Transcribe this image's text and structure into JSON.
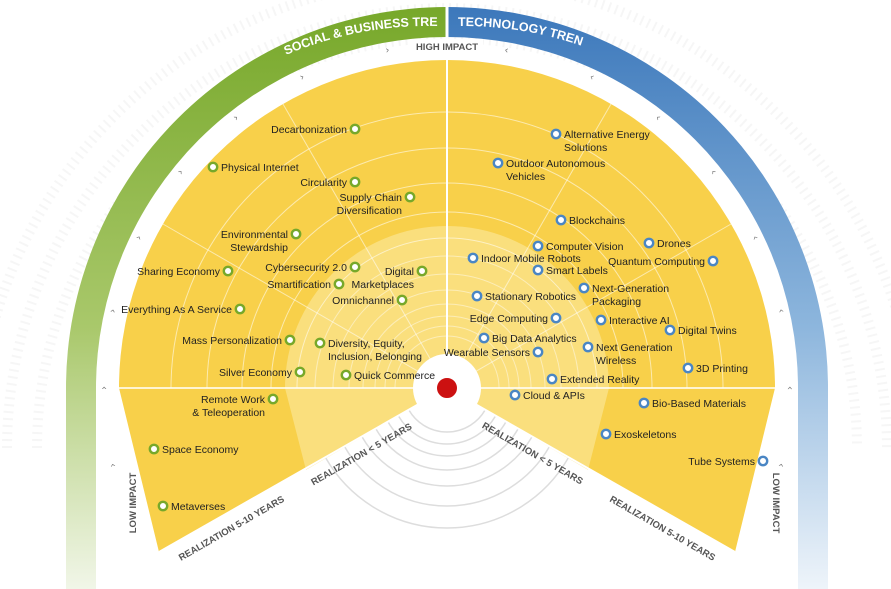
{
  "categories": {
    "social": {
      "label": "SOCIAL & BUSINESS TRENDS",
      "color": "#77a82a"
    },
    "technology": {
      "label": "TECHNOLOGY TRENDS",
      "color": "#4a86c4"
    }
  },
  "impact": {
    "high": "HIGH IMPACT",
    "low_left": "LOW IMPACT",
    "low_right": "LOW IMPACT"
  },
  "realization": {
    "left_inner": "REALIZATION < 5 YEARS",
    "left_outer": "REALIZATION 5-10 YEARS",
    "right_inner": "REALIZATION < 5 YEARS",
    "right_outer": "REALIZATION 5-10 YEARS"
  },
  "colors": {
    "inner_ring": "#fce9a8",
    "outer_ring": "#f8d04a",
    "center_dot": "#cc1111",
    "social_marker": "#77a82a",
    "tech_marker": "#4a86c4"
  },
  "social_trends": [
    {
      "name": "Decarbonization"
    },
    {
      "name": "Physical Internet"
    },
    {
      "name": "Circularity"
    },
    {
      "name": "Supply Chain Diversification"
    },
    {
      "name": "Environmental Stewardship"
    },
    {
      "name": "Sharing Economy"
    },
    {
      "name": "Cybersecurity 2.0"
    },
    {
      "name": "Digital Marketplaces"
    },
    {
      "name": "Smartification"
    },
    {
      "name": "Omnichannel"
    },
    {
      "name": "Everything As A Service"
    },
    {
      "name": "Mass Personalization"
    },
    {
      "name": "Diversity, Equity, Inclusion, Belonging"
    },
    {
      "name": "Silver Economy"
    },
    {
      "name": "Quick Commerce"
    },
    {
      "name": "Remote Work & Teleoperation"
    },
    {
      "name": "Space Economy"
    },
    {
      "name": "Metaverses"
    }
  ],
  "technology_trends": [
    {
      "name": "Alternative Energy Solutions"
    },
    {
      "name": "Outdoor Autonomous Vehicles"
    },
    {
      "name": "Blockchains"
    },
    {
      "name": "Computer Vision"
    },
    {
      "name": "Drones"
    },
    {
      "name": "Indoor Mobile Robots"
    },
    {
      "name": "Smart Labels"
    },
    {
      "name": "Quantum Computing"
    },
    {
      "name": "Stationary Robotics"
    },
    {
      "name": "Next-Generation Packaging"
    },
    {
      "name": "Edge Computing"
    },
    {
      "name": "Interactive AI"
    },
    {
      "name": "Digital Twins"
    },
    {
      "name": "Big Data Analytics"
    },
    {
      "name": "Next Generation Wireless"
    },
    {
      "name": "Wearable Sensors"
    },
    {
      "name": "3D Printing"
    },
    {
      "name": "Extended Reality"
    },
    {
      "name": "Cloud & APIs"
    },
    {
      "name": "Bio-Based Materials"
    },
    {
      "name": "Exoskeletons"
    },
    {
      "name": "Tube Systems"
    }
  ]
}
